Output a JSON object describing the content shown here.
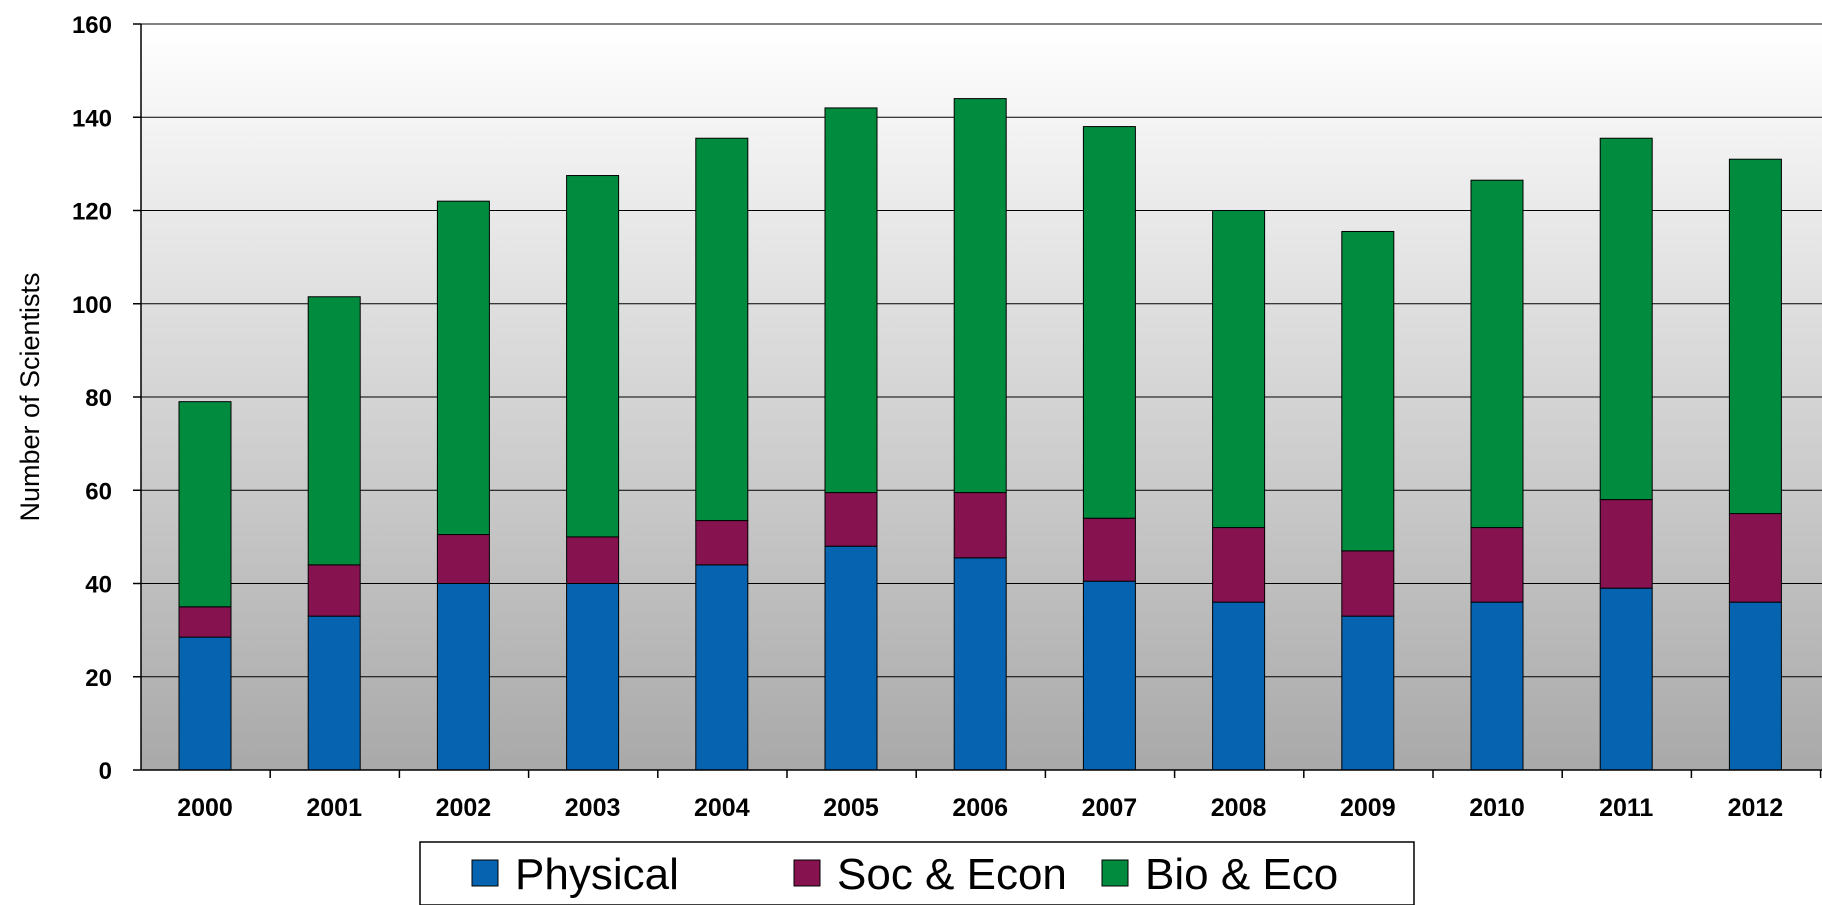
{
  "chart_data": {
    "type": "bar",
    "stacked": true,
    "categories": [
      "2000",
      "2001",
      "2002",
      "2003",
      "2004",
      "2005",
      "2006",
      "2007",
      "2008",
      "2009",
      "2010",
      "2011",
      "2012"
    ],
    "series": [
      {
        "name": "Physical",
        "color": "#0563b0",
        "values": [
          28.5,
          33,
          40,
          40,
          44,
          48,
          45.5,
          40.5,
          36,
          33,
          36,
          39,
          36
        ]
      },
      {
        "name": "Soc & Econ",
        "color": "#861250",
        "values": [
          6.5,
          11,
          10.5,
          10,
          9.5,
          11.5,
          14,
          13.5,
          16,
          14,
          16,
          19,
          19
        ]
      },
      {
        "name": "Bio & Eco",
        "color": "#008b3e",
        "values": [
          44,
          57.5,
          71.5,
          77.5,
          82,
          82.5,
          84.5,
          84,
          68,
          68.5,
          74.5,
          77.5,
          76
        ]
      }
    ],
    "title": "",
    "xlabel": "",
    "ylabel": "Number of Scientists",
    "ylim": [
      0,
      160
    ],
    "yticks": [
      "0",
      "20",
      "40",
      "60",
      "80",
      "100",
      "120",
      "140",
      "160"
    ],
    "grid": true,
    "legend_position": "bottom-center"
  }
}
